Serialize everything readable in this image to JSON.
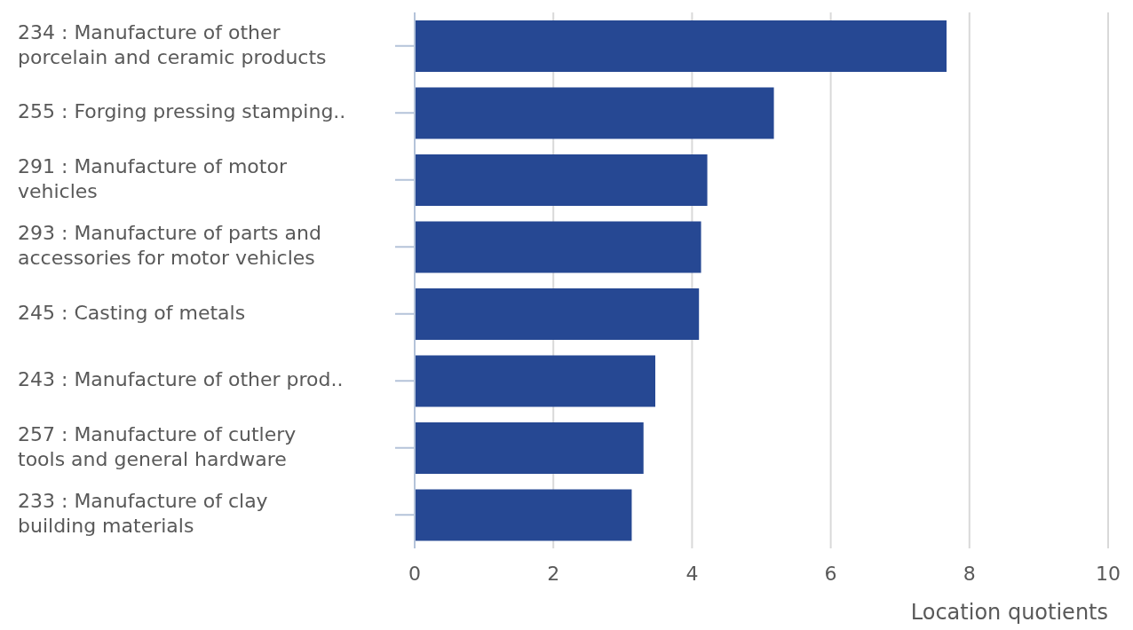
{
  "chart_data": {
    "type": "bar",
    "orientation": "horizontal",
    "xlabel": "Location quotients",
    "categories": [
      "234 : Manufacture of other porcelain and ceramic products",
      "255 : Forging pressing stamping..",
      "291 : Manufacture of motor vehicles",
      "293 : Manufacture of parts and accessories for motor vehicles",
      "245 : Casting of metals",
      "243 : Manufacture of other prod..",
      "257 : Manufacture of cutlery tools and general hardware",
      "233 : Manufacture of clay building materials"
    ],
    "values": [
      7.67,
      5.18,
      4.22,
      4.13,
      4.1,
      3.47,
      3.3,
      3.13
    ],
    "color": "#264893",
    "xlim": [
      0,
      10
    ],
    "xticks": [
      0,
      2,
      4,
      6,
      8,
      10
    ],
    "grid": "x"
  }
}
